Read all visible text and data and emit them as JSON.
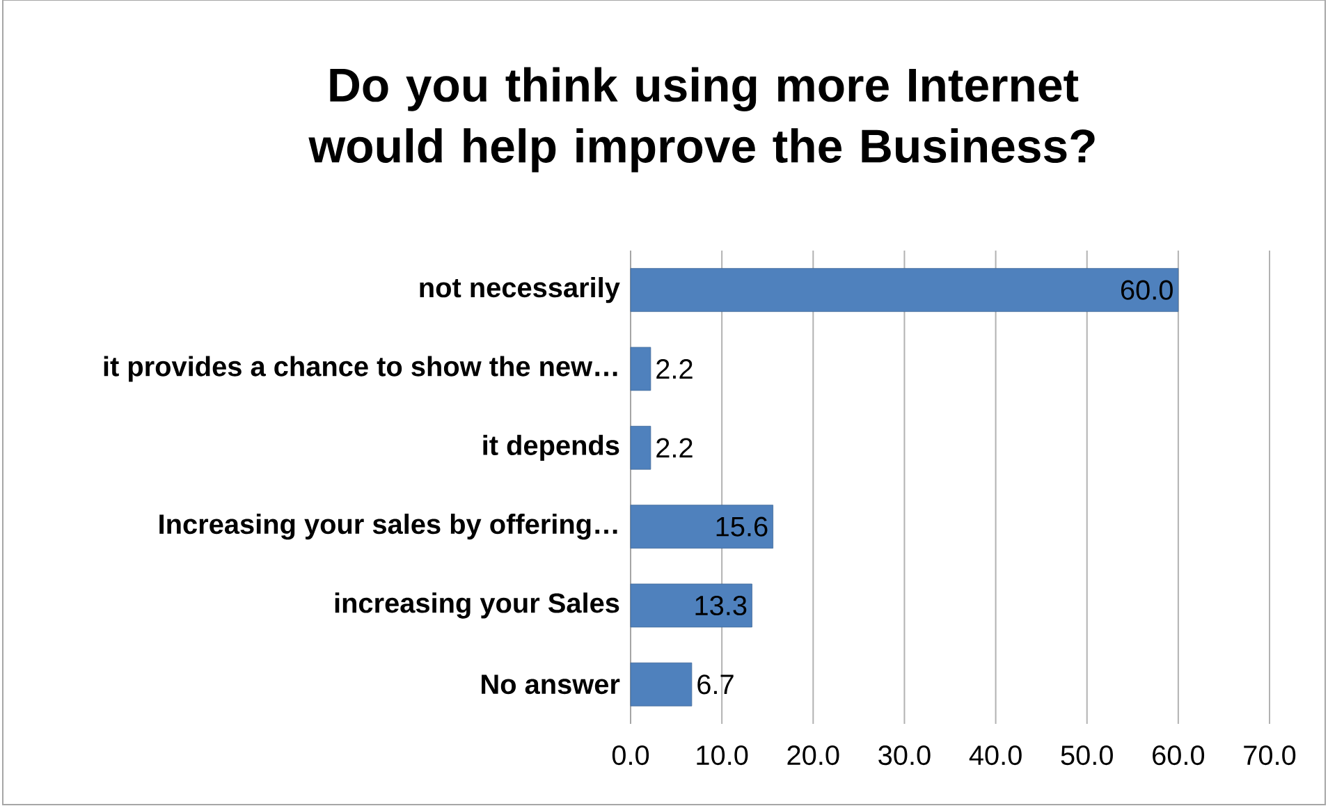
{
  "chart_data": {
    "type": "bar",
    "orientation": "horizontal",
    "title": "Do you think using more Internet would help improve the Business?",
    "categories": [
      "not necessarily",
      "it provides a chance to show the new…",
      "it depends",
      "Increasing your sales by offering…",
      "increasing your Sales",
      "No answer"
    ],
    "values": [
      60.0,
      2.2,
      2.2,
      15.6,
      13.3,
      6.7
    ],
    "value_labels": [
      "60.0",
      "2.2",
      "2.2",
      "15.6",
      "13.3",
      "6.7"
    ],
    "color": "#4f81bd",
    "xlim": [
      0,
      70
    ],
    "xticks": [
      {
        "value": 0,
        "label": "0.0"
      },
      {
        "value": 10,
        "label": "10.0"
      },
      {
        "value": 20,
        "label": "20.0"
      },
      {
        "value": 30,
        "label": "30.0"
      },
      {
        "value": 40,
        "label": "40.0"
      },
      {
        "value": 50,
        "label": "50.0"
      },
      {
        "value": 60,
        "label": "60.0"
      },
      {
        "value": 70,
        "label": "70.0"
      }
    ],
    "grid": "x"
  }
}
